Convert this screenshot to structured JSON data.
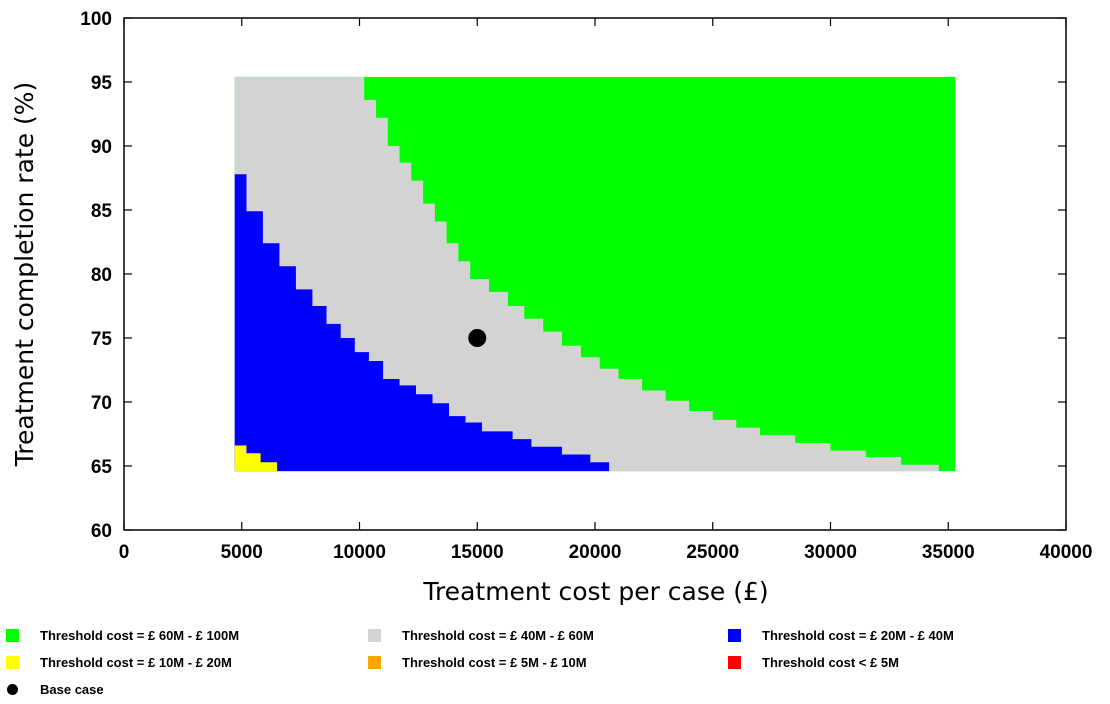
{
  "chart_data": {
    "type": "heatmap",
    "xlabel": "Treatment cost per case (£)",
    "ylabel": "Treatment completion rate (%)",
    "xlim": [
      0,
      40000
    ],
    "ylim": [
      60,
      100
    ],
    "x_ticks": [
      "0",
      "5000",
      "10000",
      "15000",
      "20000",
      "25000",
      "30000",
      "35000",
      "40000"
    ],
    "y_ticks": [
      "60",
      "65",
      "70",
      "75",
      "80",
      "85",
      "90",
      "95",
      "100"
    ],
    "x_range": [
      4700,
      35300
    ],
    "y_range": [
      64.6,
      95.4
    ],
    "colors": {
      "green": "#00ff00",
      "grey": "#d3d3d3",
      "blue": "#0000ff",
      "yellow": "#ffff00",
      "orange": "#ffa500",
      "red": "#ff0000",
      "base": "#000000"
    },
    "grey_lower_boundary": [
      [
        10200,
        95.4
      ],
      [
        10200,
        93.6
      ],
      [
        10700,
        93.6
      ],
      [
        10700,
        92.2
      ],
      [
        11200,
        92.2
      ],
      [
        11200,
        90.0
      ],
      [
        11700,
        90.0
      ],
      [
        11700,
        88.7
      ],
      [
        12200,
        88.7
      ],
      [
        12200,
        87.3
      ],
      [
        12700,
        87.3
      ],
      [
        12700,
        85.5
      ],
      [
        13200,
        85.5
      ],
      [
        13200,
        84.1
      ],
      [
        13700,
        84.1
      ],
      [
        13700,
        82.4
      ],
      [
        14200,
        82.4
      ],
      [
        14200,
        81.0
      ],
      [
        14700,
        81.0
      ],
      [
        14700,
        79.6
      ],
      [
        15500,
        79.6
      ],
      [
        15500,
        78.6
      ],
      [
        16300,
        78.6
      ],
      [
        16300,
        77.5
      ],
      [
        17000,
        77.5
      ],
      [
        17000,
        76.5
      ],
      [
        17800,
        76.5
      ],
      [
        17800,
        75.5
      ],
      [
        18600,
        75.5
      ],
      [
        18600,
        74.4
      ],
      [
        19400,
        74.4
      ],
      [
        19400,
        73.5
      ],
      [
        20200,
        73.5
      ],
      [
        20200,
        72.6
      ],
      [
        21000,
        72.6
      ],
      [
        21000,
        71.8
      ],
      [
        22000,
        71.8
      ],
      [
        22000,
        70.9
      ],
      [
        23000,
        70.9
      ],
      [
        23000,
        70.1
      ],
      [
        24000,
        70.1
      ],
      [
        24000,
        69.3
      ],
      [
        25000,
        69.3
      ],
      [
        25000,
        68.6
      ],
      [
        26000,
        68.6
      ],
      [
        26000,
        68.0
      ],
      [
        27000,
        68.0
      ],
      [
        27000,
        67.4
      ],
      [
        28500,
        67.4
      ],
      [
        28500,
        66.8
      ],
      [
        30000,
        66.8
      ],
      [
        30000,
        66.2
      ],
      [
        31500,
        66.2
      ],
      [
        31500,
        65.7
      ],
      [
        33000,
        65.7
      ],
      [
        33000,
        65.1
      ],
      [
        34600,
        65.1
      ],
      [
        34600,
        64.6
      ]
    ],
    "blue_upper_boundary": [
      [
        4700,
        87.8
      ],
      [
        5200,
        87.8
      ],
      [
        5200,
        84.9
      ],
      [
        5900,
        84.9
      ],
      [
        5900,
        82.4
      ],
      [
        6600,
        82.4
      ],
      [
        6600,
        80.6
      ],
      [
        7300,
        80.6
      ],
      [
        7300,
        78.8
      ],
      [
        8000,
        78.8
      ],
      [
        8000,
        77.5
      ],
      [
        8600,
        77.5
      ],
      [
        8600,
        76.1
      ],
      [
        9200,
        76.1
      ],
      [
        9200,
        75.0
      ],
      [
        9800,
        75.0
      ],
      [
        9800,
        73.9
      ],
      [
        10400,
        73.9
      ],
      [
        10400,
        73.2
      ],
      [
        11000,
        73.2
      ],
      [
        11000,
        71.8
      ],
      [
        11700,
        71.8
      ],
      [
        11700,
        71.3
      ],
      [
        12400,
        71.3
      ],
      [
        12400,
        70.6
      ],
      [
        13100,
        70.6
      ],
      [
        13100,
        69.9
      ],
      [
        13800,
        69.9
      ],
      [
        13800,
        68.9
      ],
      [
        14500,
        68.9
      ],
      [
        14500,
        68.4
      ],
      [
        15200,
        68.4
      ],
      [
        15200,
        67.7
      ],
      [
        16500,
        67.7
      ],
      [
        16500,
        67.1
      ],
      [
        17300,
        67.1
      ],
      [
        17300,
        66.5
      ],
      [
        18600,
        66.5
      ],
      [
        18600,
        65.9
      ],
      [
        19800,
        65.9
      ],
      [
        19800,
        65.3
      ],
      [
        20600,
        65.3
      ],
      [
        20600,
        64.6
      ]
    ],
    "yellow_region": [
      [
        4700,
        64.6
      ],
      [
        4700,
        66.6
      ],
      [
        5200,
        66.6
      ],
      [
        5200,
        66.0
      ],
      [
        5800,
        66.0
      ],
      [
        5800,
        65.3
      ],
      [
        6500,
        65.3
      ],
      [
        6500,
        64.6
      ]
    ],
    "base_case": {
      "x": 15000,
      "y": 75,
      "label": "Base case"
    }
  },
  "legend": {
    "items": [
      {
        "label": "Threshold cost = £ 60M - £ 100M",
        "color": "#00ff00"
      },
      {
        "label": "Threshold cost = £ 40M - £ 60M",
        "color": "#d3d3d3"
      },
      {
        "label": "Threshold cost = £ 20M - £ 40M",
        "color": "#0000ff"
      },
      {
        "label": "Threshold cost = £ 10M - £ 20M",
        "color": "#ffff00"
      },
      {
        "label": "Threshold cost = £ 5M - £ 10M",
        "color": "#ffa500"
      },
      {
        "label": "Threshold cost < £ 5M",
        "color": "#ff0000"
      }
    ],
    "base_case_label": "Base case"
  }
}
